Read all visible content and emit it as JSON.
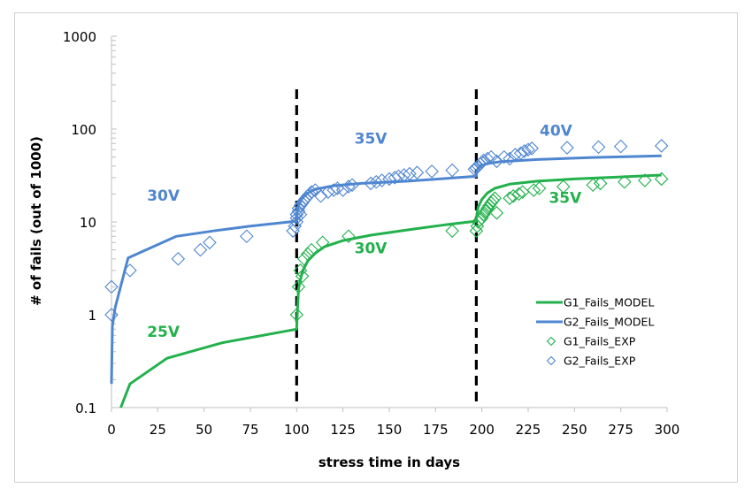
{
  "chart_data": {
    "type": "scatter",
    "title": "",
    "xlabel": "stress time in days",
    "ylabel": "# of fails (out of 1000)",
    "xlim": [
      0,
      300
    ],
    "ylim": [
      0.1,
      1000
    ],
    "yscale": "log",
    "grid": false,
    "legend_position": "bottom-right",
    "x_ticks": [
      "0",
      "25",
      "50",
      "75",
      "100",
      "125",
      "150",
      "175",
      "200",
      "225",
      "250",
      "275",
      "300"
    ],
    "x_tick_values": [
      0,
      25,
      50,
      75,
      100,
      125,
      150,
      175,
      200,
      225,
      250,
      275,
      300
    ],
    "y_ticks": [
      "0.1",
      "1",
      "10",
      "100",
      "1000"
    ],
    "y_tick_values": [
      0.1,
      1,
      10,
      100,
      1000
    ],
    "vertical_lines": [
      100,
      197
    ],
    "colors": {
      "G1": "#22b14c",
      "G2": "#4f86d0",
      "dashed": "#000000"
    },
    "annotations": [
      {
        "text": "30V",
        "x": 28,
        "y": 17,
        "series": "G2"
      },
      {
        "text": "35V",
        "x": 140,
        "y": 70,
        "series": "G2"
      },
      {
        "text": "40V",
        "x": 240,
        "y": 85,
        "series": "G2"
      },
      {
        "text": "25V",
        "x": 28,
        "y": 0.58,
        "series": "G1"
      },
      {
        "text": "30V",
        "x": 140,
        "y": 4.6,
        "series": "G1"
      },
      {
        "text": "35V",
        "x": 245,
        "y": 16,
        "series": "G1"
      }
    ],
    "series": [
      {
        "name": "G1_Fails_MODEL",
        "kind": "line",
        "color": "#22b14c",
        "x": [
          5,
          10,
          30,
          60,
          100,
          100.3,
          101,
          103,
          106,
          110,
          115,
          125,
          140,
          160,
          180,
          197,
          197.3,
          198,
          200,
          203,
          207,
          215,
          230,
          250,
          275,
          297
        ],
        "y": [
          0.1,
          0.18,
          0.34,
          0.5,
          0.7,
          1.0,
          1.9,
          2.9,
          3.8,
          4.6,
          5.4,
          6.3,
          7.2,
          8.2,
          9.3,
          10.2,
          12,
          14.5,
          17.5,
          20.5,
          23,
          25.5,
          27.5,
          29,
          30.5,
          32
        ]
      },
      {
        "name": "G2_Fails_MODEL",
        "kind": "line",
        "color": "#4f86d0",
        "x": [
          0,
          0.5,
          2,
          9,
          35,
          55,
          75,
          100,
          100.3,
          101,
          103,
          106,
          110,
          120,
          135,
          160,
          197,
          197.3,
          199,
          203,
          210,
          230,
          260,
          297
        ],
        "y": [
          0.18,
          0.75,
          1.2,
          4.1,
          7.0,
          8.0,
          9.0,
          10.2,
          12.5,
          15,
          18,
          20.5,
          22.5,
          24.5,
          26,
          27.5,
          31,
          36,
          40,
          42.5,
          44.5,
          47,
          49.5,
          51.5
        ]
      },
      {
        "name": "G1_Fails_EXP",
        "kind": "scatter",
        "color": "#22b14c",
        "x": [
          100,
          101,
          102,
          103,
          104,
          106,
          108,
          114,
          128,
          184,
          197,
          197.5,
          198,
          199,
          200,
          201,
          202,
          203,
          204,
          205,
          206,
          207,
          208,
          215,
          217,
          220,
          222,
          228,
          231,
          244,
          260,
          264,
          277,
          288,
          297
        ],
        "y": [
          1,
          2,
          3,
          2.6,
          4,
          4.5,
          5,
          6,
          7,
          8,
          8,
          9,
          10,
          10.5,
          11,
          12,
          13,
          14,
          15,
          16,
          17,
          18,
          12.5,
          18,
          19,
          20,
          21,
          22,
          23,
          24,
          25,
          26,
          27,
          28,
          29
        ]
      },
      {
        "name": "G2_Fails_EXP",
        "kind": "scatter",
        "color": "#4f86d0",
        "x": [
          0,
          0,
          10,
          36,
          48,
          53,
          73,
          98,
          99,
          100,
          100,
          100,
          101,
          101,
          102,
          102,
          103,
          104,
          105,
          106,
          107,
          108,
          110,
          113,
          117,
          120,
          122,
          125,
          128,
          130,
          140,
          143,
          146,
          150,
          153,
          155,
          158,
          161,
          165,
          173,
          184,
          196,
          197,
          198,
          199,
          200,
          201,
          203,
          205,
          208,
          212,
          215,
          218,
          221,
          223,
          225,
          227,
          246,
          263,
          275,
          297
        ],
        "y": [
          1,
          2,
          3,
          4,
          5,
          6,
          7,
          8,
          9,
          10,
          11,
          12,
          13,
          14,
          15,
          12,
          16,
          17,
          18,
          19,
          20,
          21,
          22,
          19,
          21,
          22,
          23,
          22,
          24,
          25,
          26,
          27,
          28,
          29,
          30,
          31,
          32,
          33,
          34,
          35,
          36,
          37,
          38,
          40,
          42,
          44,
          46,
          48,
          50,
          45,
          50,
          48,
          53,
          55,
          58,
          60,
          62,
          63,
          64,
          65,
          66
        ]
      }
    ]
  }
}
